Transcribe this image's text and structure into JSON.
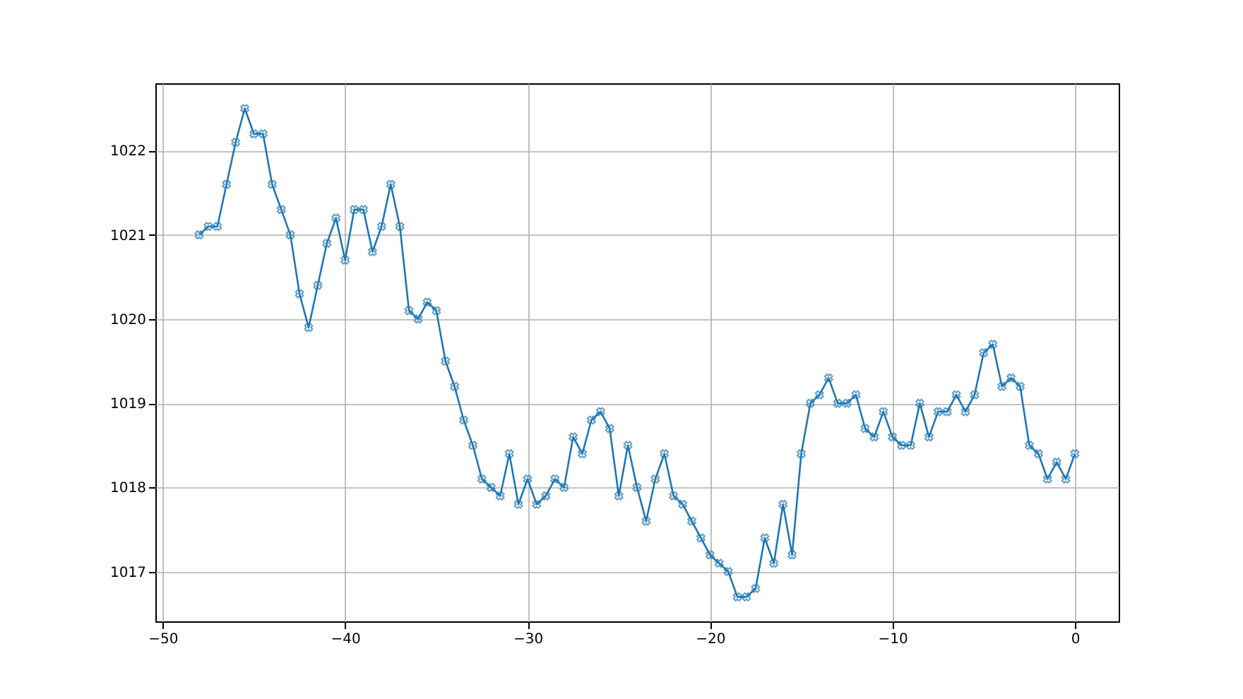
{
  "chart_data": {
    "type": "line",
    "x": [
      -48,
      -47.5,
      -47,
      -46.5,
      -46,
      -45.5,
      -45,
      -44.5,
      -44,
      -43.5,
      -43,
      -42.5,
      -42,
      -41.5,
      -41,
      -40.5,
      -40,
      -39.5,
      -39,
      -38.5,
      -38,
      -37.5,
      -37,
      -36.5,
      -36,
      -35.5,
      -35,
      -34.5,
      -34,
      -33.5,
      -33,
      -32.5,
      -32,
      -31.5,
      -31,
      -30.5,
      -30,
      -29.5,
      -29,
      -28.5,
      -28,
      -27.5,
      -27,
      -26.5,
      -26,
      -25.5,
      -25,
      -24.5,
      -24,
      -23.5,
      -23,
      -22.5,
      -22,
      -21.5,
      -21,
      -20.5,
      -20,
      -19.5,
      -19,
      -18.5,
      -18,
      -17.5,
      -17,
      -16.5,
      -16,
      -15.5,
      -15,
      -14.5,
      -14,
      -13.5,
      -13,
      -12.5,
      -12,
      -11.5,
      -11,
      -10.5,
      -10,
      -9.5,
      -9,
      -8.5,
      -8,
      -7.5,
      -7,
      -6.5,
      -6,
      -5.5,
      -5,
      -4.5,
      -4,
      -3.5,
      -3,
      -2.5,
      -2,
      -1.5,
      -1,
      -0.5,
      0
    ],
    "series": [
      {
        "color": "#1f77b4",
        "values": [
          1021.0,
          1021.1,
          1021.1,
          1021.6,
          1022.1,
          1022.5,
          1022.2,
          1022.2,
          1021.6,
          1021.3,
          1021.0,
          1020.3,
          1019.9,
          1020.4,
          1020.9,
          1021.2,
          1020.7,
          1021.3,
          1021.3,
          1020.8,
          1021.1,
          1021.6,
          1021.1,
          1020.1,
          1020.0,
          1020.2,
          1020.1,
          1019.5,
          1019.2,
          1018.8,
          1018.5,
          1018.1,
          1018.0,
          1017.9,
          1018.4,
          1017.8,
          1018.1,
          1017.8,
          1017.9,
          1018.1,
          1018.0,
          1018.6,
          1018.4,
          1018.8,
          1018.9,
          1018.7,
          1017.9,
          1018.5,
          1018.0,
          1017.6,
          1018.1,
          1018.4,
          1017.9,
          1017.8,
          1017.6,
          1017.4,
          1017.2,
          1017.1,
          1017.0,
          1016.7,
          1016.7,
          1016.8,
          1017.4,
          1017.1,
          1017.8,
          1017.2,
          1018.4,
          1019.0,
          1019.1,
          1019.3,
          1019.0,
          1019.0,
          1019.1,
          1018.7,
          1018.6,
          1018.9,
          1018.6,
          1018.5,
          1018.5,
          1019.0,
          1018.6,
          1018.9,
          1018.9,
          1019.1,
          1018.9,
          1019.1,
          1019.6,
          1019.7,
          1019.2,
          1019.3,
          1019.2,
          1018.5,
          1018.4,
          1018.1,
          1018.3,
          1018.1,
          1018.4
        ]
      }
    ],
    "xlim": [
      -50.4,
      2.4
    ],
    "ylim": [
      1016.41,
      1022.8
    ],
    "xticks": [
      -50,
      -40,
      -30,
      -20,
      -10,
      0
    ],
    "yticks": [
      1017,
      1018,
      1019,
      1020,
      1021,
      1022
    ],
    "grid": true,
    "marker": "cross",
    "line_style": "solid"
  }
}
